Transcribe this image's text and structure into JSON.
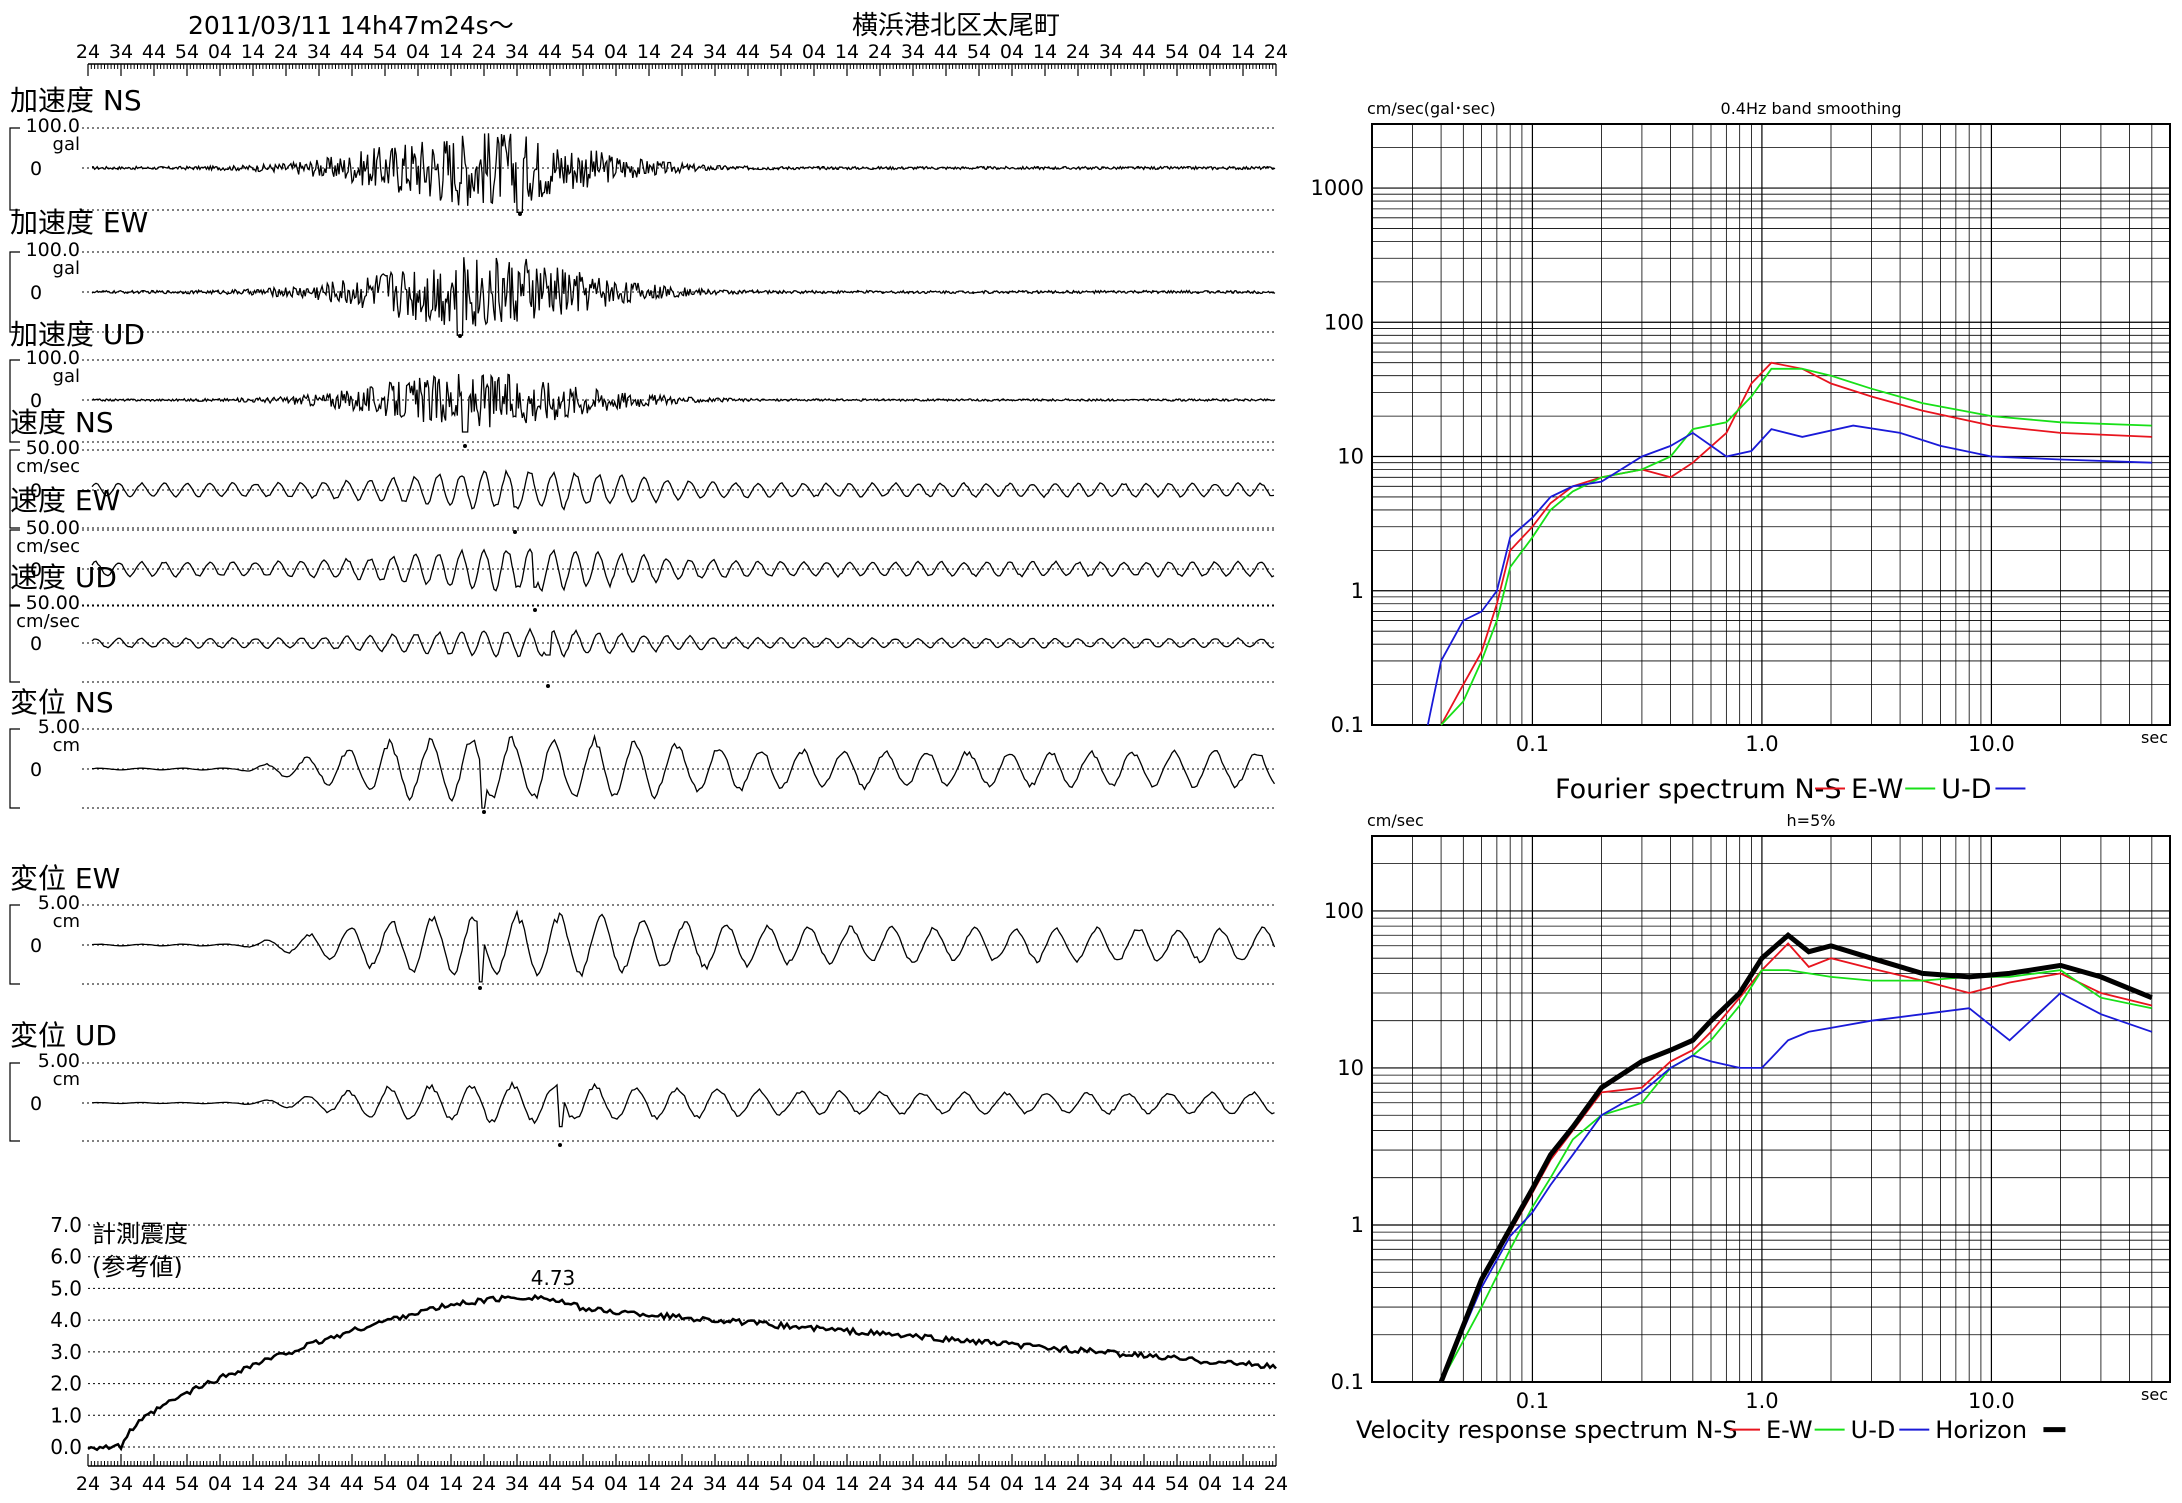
{
  "header": {
    "datetime": "2011/03/11  14h47m24s～",
    "station": "横浜港北区太尾町"
  },
  "time_ticks": [
    "24",
    "34",
    "44",
    "54",
    "04",
    "14",
    "24",
    "34",
    "44",
    "54",
    "04",
    "14",
    "24",
    "34",
    "44",
    "54",
    "04",
    "14",
    "24",
    "34",
    "44",
    "54",
    "04",
    "14",
    "24",
    "34",
    "44",
    "54",
    "04",
    "14",
    "24",
    "34",
    "44",
    "54",
    "04",
    "14",
    "24"
  ],
  "traces": [
    {
      "label": "加速度 NS",
      "max_label": "100.0",
      "unit": "gal",
      "zero": "0"
    },
    {
      "label": "加速度 EW",
      "max_label": "100.0",
      "unit": "gal",
      "zero": "0"
    },
    {
      "label": "加速度 UD",
      "max_label": "100.0",
      "unit": "gal",
      "zero": "0"
    },
    {
      "label": "速度 NS",
      "max_label": "50.00",
      "unit": "cm/sec",
      "zero": "0"
    },
    {
      "label": "速度 EW",
      "max_label": "50.00",
      "unit": "cm/sec",
      "zero": "0"
    },
    {
      "label": "速度 UD",
      "max_label": "50.00",
      "unit": "cm/sec",
      "zero": "0"
    },
    {
      "label": "変位 NS",
      "max_label": "5.00",
      "unit": "cm",
      "zero": "0"
    },
    {
      "label": "変位 EW",
      "max_label": "5.00",
      "unit": "cm",
      "zero": "0"
    },
    {
      "label": "変位 UD",
      "max_label": "5.00",
      "unit": "cm",
      "zero": "0"
    }
  ],
  "intensity": {
    "label1": "計測震度",
    "label2": "(参考値)",
    "yticks": [
      "7.0",
      "6.0",
      "5.0",
      "4.0",
      "3.0",
      "2.0",
      "1.0",
      "0.0"
    ],
    "peak_label": "4.73"
  },
  "colors": {
    "ns": "#e8141e",
    "ew": "#18e018",
    "ud": "#1a1ad8",
    "horizon": "#000000"
  },
  "chart_data": [
    {
      "type": "line",
      "title": "0.4Hz band smoothing",
      "ylabel": "cm/sec(gal･sec)",
      "xlabel": "sec",
      "xscale": "log",
      "yscale": "log",
      "xlim": [
        0.02,
        60
      ],
      "ylim": [
        0.1,
        3000
      ],
      "xticks": [
        "0.1",
        "1.0",
        "10.0"
      ],
      "yticks": [
        "0.1",
        "1",
        "10",
        "100",
        "1000"
      ],
      "caption": "Fourier spectrum  N-S",
      "legend": [
        {
          "name": "N-S",
          "color": "ns"
        },
        {
          "name": "E-W",
          "color": "ew"
        },
        {
          "name": "U-D",
          "color": "ud"
        }
      ],
      "series": [
        {
          "name": "N-S",
          "color": "ns",
          "x": [
            0.04,
            0.05,
            0.06,
            0.07,
            0.08,
            0.1,
            0.12,
            0.15,
            0.2,
            0.3,
            0.4,
            0.5,
            0.7,
            0.9,
            1.1,
            1.5,
            2,
            3,
            5,
            10,
            20,
            50
          ],
          "y": [
            0.1,
            0.2,
            0.35,
            0.8,
            2,
            3,
            4.5,
            6,
            7,
            8,
            7,
            9,
            15,
            35,
            50,
            45,
            35,
            28,
            22,
            17,
            15,
            14
          ]
        },
        {
          "name": "E-W",
          "color": "ew",
          "x": [
            0.04,
            0.05,
            0.06,
            0.07,
            0.08,
            0.1,
            0.12,
            0.15,
            0.2,
            0.3,
            0.4,
            0.5,
            0.7,
            0.9,
            1.1,
            1.5,
            2,
            3,
            5,
            10,
            20,
            50
          ],
          "y": [
            0.1,
            0.15,
            0.3,
            0.6,
            1.5,
            2.5,
            4,
            5.5,
            7,
            8,
            10,
            16,
            18,
            28,
            45,
            45,
            40,
            32,
            25,
            20,
            18,
            17
          ]
        },
        {
          "name": "U-D",
          "color": "ud",
          "x": [
            0.035,
            0.04,
            0.05,
            0.06,
            0.07,
            0.08,
            0.1,
            0.12,
            0.15,
            0.2,
            0.3,
            0.4,
            0.5,
            0.7,
            0.9,
            1.1,
            1.5,
            2.5,
            4,
            6,
            10,
            20,
            50
          ],
          "y": [
            0.1,
            0.3,
            0.6,
            0.7,
            1,
            2.5,
            3.5,
            5,
            6,
            6.5,
            10,
            12,
            15,
            10,
            11,
            16,
            14,
            17,
            15,
            12,
            10,
            9.5,
            9
          ]
        }
      ]
    },
    {
      "type": "line",
      "title": "h=5%",
      "ylabel": "cm/sec",
      "xlabel": "sec",
      "xscale": "log",
      "yscale": "log",
      "xlim": [
        0.02,
        60
      ],
      "ylim": [
        0.1,
        300
      ],
      "xticks": [
        "0.1",
        "1.0",
        "10.0"
      ],
      "yticks": [
        "0.1",
        "1",
        "10",
        "100"
      ],
      "caption": "Velocity response spectrum N-S",
      "legend": [
        {
          "name": "N-S",
          "color": "ns"
        },
        {
          "name": "E-W",
          "color": "ew"
        },
        {
          "name": "U-D",
          "color": "ud"
        },
        {
          "name": "Horizon",
          "color": "horizon"
        }
      ],
      "series": [
        {
          "name": "N-S",
          "color": "ns",
          "x": [
            0.04,
            0.06,
            0.08,
            0.1,
            0.12,
            0.15,
            0.2,
            0.3,
            0.4,
            0.5,
            0.6,
            0.8,
            1.0,
            1.3,
            1.6,
            2,
            3,
            5,
            8,
            12,
            20,
            30,
            50
          ],
          "y": [
            0.1,
            0.45,
            0.9,
            1.6,
            2.6,
            4,
            7,
            7.5,
            11,
            13,
            17,
            28,
            42,
            62,
            44,
            50,
            43,
            36,
            30,
            35,
            40,
            30,
            25
          ]
        },
        {
          "name": "E-W",
          "color": "ew",
          "x": [
            0.04,
            0.06,
            0.08,
            0.1,
            0.12,
            0.15,
            0.2,
            0.3,
            0.4,
            0.5,
            0.6,
            0.8,
            1.0,
            1.3,
            1.6,
            2,
            3,
            5,
            8,
            12,
            20,
            30,
            50
          ],
          "y": [
            0.1,
            0.3,
            0.7,
            1.3,
            2,
            3.5,
            5,
            6,
            10,
            12,
            15,
            25,
            42,
            42,
            40,
            38,
            36,
            36,
            38,
            38,
            42,
            28,
            24
          ]
        },
        {
          "name": "U-D",
          "color": "ud",
          "x": [
            0.04,
            0.06,
            0.08,
            0.1,
            0.12,
            0.15,
            0.2,
            0.3,
            0.4,
            0.5,
            0.6,
            0.8,
            1.0,
            1.3,
            1.6,
            2,
            3,
            5,
            8,
            12,
            20,
            30,
            50
          ],
          "y": [
            0.1,
            0.4,
            0.85,
            1.2,
            1.8,
            2.8,
            5,
            7,
            10,
            12,
            11,
            10,
            10,
            15,
            17,
            18,
            20,
            22,
            24,
            15,
            30,
            22,
            17
          ]
        },
        {
          "name": "Horizon",
          "color": "horizon",
          "x": [
            0.04,
            0.06,
            0.08,
            0.1,
            0.12,
            0.15,
            0.2,
            0.3,
            0.4,
            0.5,
            0.6,
            0.8,
            1.0,
            1.3,
            1.6,
            2,
            3,
            5,
            8,
            12,
            20,
            30,
            50
          ],
          "y": [
            0.1,
            0.45,
            0.95,
            1.7,
            2.8,
            4.2,
            7.5,
            11,
            13,
            15,
            20,
            30,
            50,
            70,
            55,
            60,
            50,
            40,
            38,
            40,
            45,
            38,
            28
          ]
        }
      ]
    }
  ]
}
